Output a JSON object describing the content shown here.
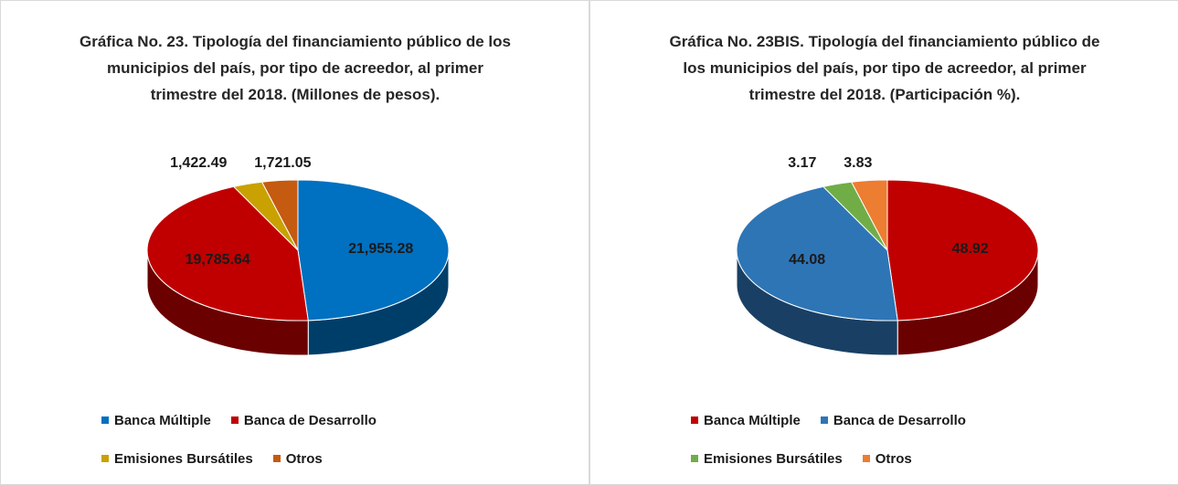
{
  "chart_data": [
    {
      "type": "pie",
      "title": "Gráfica No. 23. Tipología del financiamiento público de los municipios del país, por tipo de acreedor, al primer trimestre del 2018. (Millones de pesos).",
      "categories": [
        "Banca Múltiple",
        "Banca de Desarrollo",
        "Emisiones Bursátiles",
        "Otros"
      ],
      "values": [
        21955.28,
        19785.64,
        1422.49,
        1721.05
      ],
      "value_labels": [
        "21,955.28",
        "19,785.64",
        "1,422.49",
        "1,721.05"
      ],
      "colors": [
        "#0070c0",
        "#c00000",
        "#c9a100",
        "#c55a11"
      ]
    },
    {
      "type": "pie",
      "title": "Gráfica No. 23BIS. Tipología del financiamiento público de los municipios del país, por tipo de acreedor, al primer trimestre del 2018. (Participación %).",
      "categories": [
        "Banca Múltiple",
        "Banca de Desarrollo",
        "Emisiones Bursátiles",
        "Otros"
      ],
      "values": [
        48.92,
        44.08,
        3.17,
        3.83
      ],
      "colors": [
        "#c00000",
        "#2e75b6",
        "#70ad47",
        "#ed7d31"
      ]
    }
  ]
}
